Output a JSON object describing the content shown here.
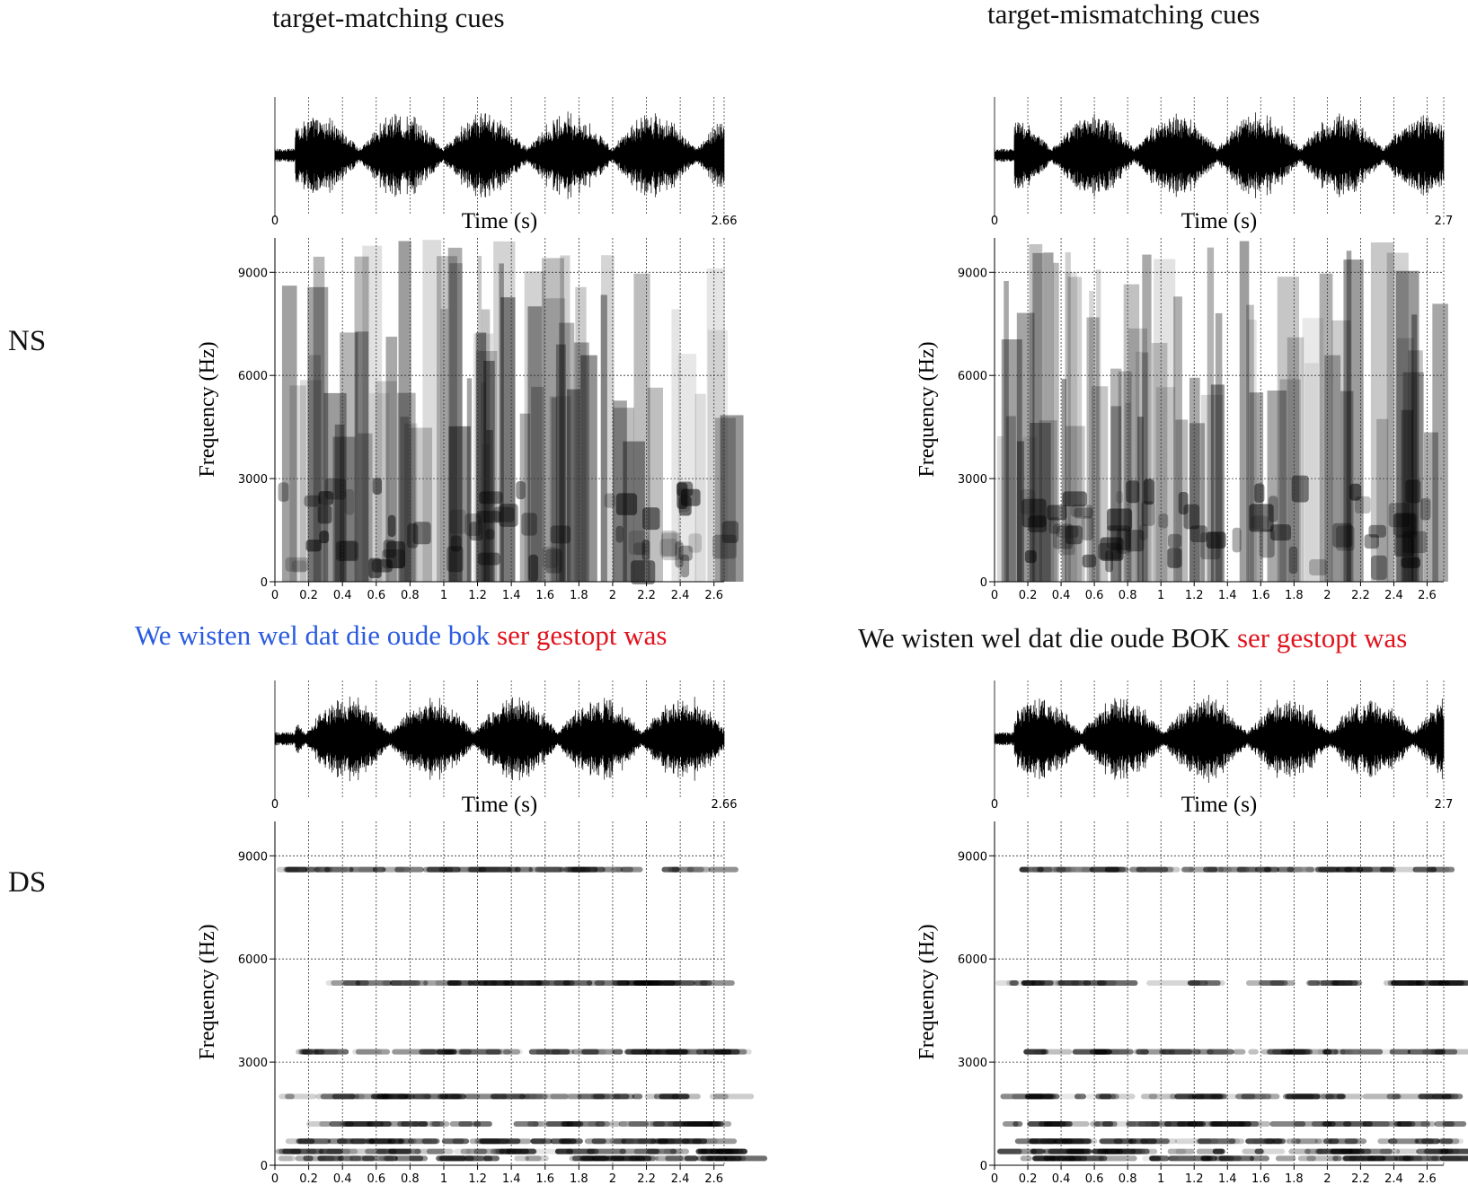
{
  "columns": [
    {
      "title": "target-matching  cues"
    },
    {
      "title": "target-mismatching  cues"
    }
  ],
  "rows": [
    {
      "label": "NS"
    },
    {
      "label": "DS"
    }
  ],
  "sentences": [
    {
      "part1": "We wisten wel dat die oude bok",
      "part2": "ser",
      "part3": "gestopt",
      "part4": "was"
    },
    {
      "part1": "We wisten wel dat die oude BOK",
      "part2": "ser",
      "part3": "gestopt",
      "part4": "was"
    }
  ],
  "colors": {
    "matching_words": "#2a5be0",
    "critical_words": "#e0141e",
    "neutral_words": "#111111"
  },
  "chart_data": [
    {
      "type": "heatmap",
      "panel": "NS / target-matching cues",
      "waveform": {
        "xlabel": "Time (s)",
        "xlim": [
          0,
          2.66
        ],
        "tick_labels": [
          "0",
          "2.66"
        ]
      },
      "spectrogram": {
        "ylabel": "Frequency (Hz)",
        "ylim": [
          0,
          10000
        ],
        "yticks": [
          0,
          3000,
          6000,
          9000
        ],
        "xlim": [
          0,
          2.66
        ],
        "xticks": [
          0,
          0.2,
          0.4,
          0.6,
          0.8,
          1,
          1.2,
          1.4,
          1.6,
          1.8,
          2,
          2.2,
          2.4,
          2.6
        ],
        "grid": true
      }
    },
    {
      "type": "heatmap",
      "panel": "NS / target-mismatching cues",
      "waveform": {
        "xlabel": "Time (s)",
        "xlim": [
          0,
          2.7
        ],
        "tick_labels": [
          "0",
          "2.7"
        ]
      },
      "spectrogram": {
        "ylabel": "Frequency (Hz)",
        "ylim": [
          0,
          10000
        ],
        "yticks": [
          0,
          3000,
          6000,
          9000
        ],
        "xlim": [
          0,
          2.7
        ],
        "xticks": [
          0,
          0.2,
          0.4,
          0.6,
          0.8,
          1,
          1.2,
          1.4,
          1.6,
          1.8,
          2,
          2.2,
          2.4,
          2.6
        ],
        "grid": true
      }
    },
    {
      "type": "heatmap",
      "panel": "DS / target-matching cues",
      "waveform": {
        "xlabel": "Time (s)",
        "xlim": [
          0,
          2.66
        ],
        "tick_labels": [
          "0",
          "2.66"
        ]
      },
      "spectrogram": {
        "ylabel": "Frequency (Hz)",
        "ylim": [
          0,
          10000
        ],
        "yticks": [
          0,
          3000,
          6000,
          9000
        ],
        "xlim": [
          0,
          2.66
        ],
        "xticks": [
          0,
          0.2,
          0.4,
          0.6,
          0.8,
          1,
          1.2,
          1.4,
          1.6,
          1.8,
          2,
          2.2,
          2.4,
          2.6
        ],
        "grid": true,
        "harmonic_bands_hz": [
          8600,
          5300,
          3300,
          2000,
          1200,
          700,
          400,
          200
        ]
      }
    },
    {
      "type": "heatmap",
      "panel": "DS / target-mismatching cues",
      "waveform": {
        "xlabel": "Time (s)",
        "xlim": [
          0,
          2.7
        ],
        "tick_labels": [
          "0",
          "2.7"
        ]
      },
      "spectrogram": {
        "ylabel": "Frequency (Hz)",
        "ylim": [
          0,
          10000
        ],
        "yticks": [
          0,
          3000,
          6000,
          9000
        ],
        "xlim": [
          0,
          2.7
        ],
        "xticks": [
          0,
          0.2,
          0.4,
          0.6,
          0.8,
          1,
          1.2,
          1.4,
          1.6,
          1.8,
          2,
          2.2,
          2.4,
          2.6
        ],
        "grid": true,
        "harmonic_bands_hz": [
          8600,
          5300,
          3300,
          2000,
          1200,
          700,
          400,
          200
        ]
      }
    }
  ]
}
